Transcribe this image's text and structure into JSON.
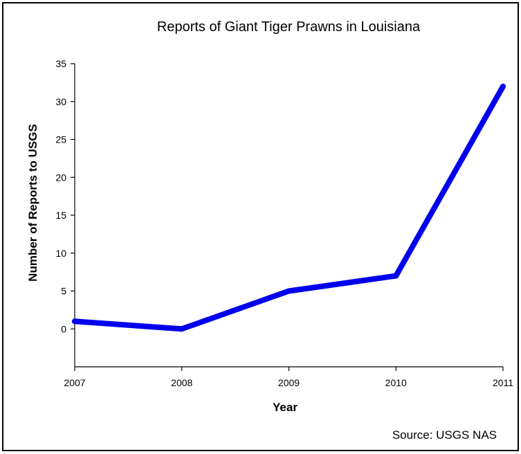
{
  "chart_data": {
    "type": "line",
    "title": "Reports of Giant Tiger Prawns in Louisiana",
    "xlabel": "Year",
    "ylabel": "Number of Reports to USGS",
    "source": "Source: USGS NAS",
    "x": [
      "2007",
      "2008",
      "2009",
      "2010",
      "2011"
    ],
    "series": [
      {
        "values": [
          1,
          0,
          5,
          7,
          32
        ],
        "color": "#0000ee"
      }
    ],
    "yticks": [
      0,
      5,
      10,
      15,
      20,
      25,
      30,
      35
    ],
    "ylim": [
      -5,
      35
    ],
    "grid": false,
    "legend": "none"
  }
}
